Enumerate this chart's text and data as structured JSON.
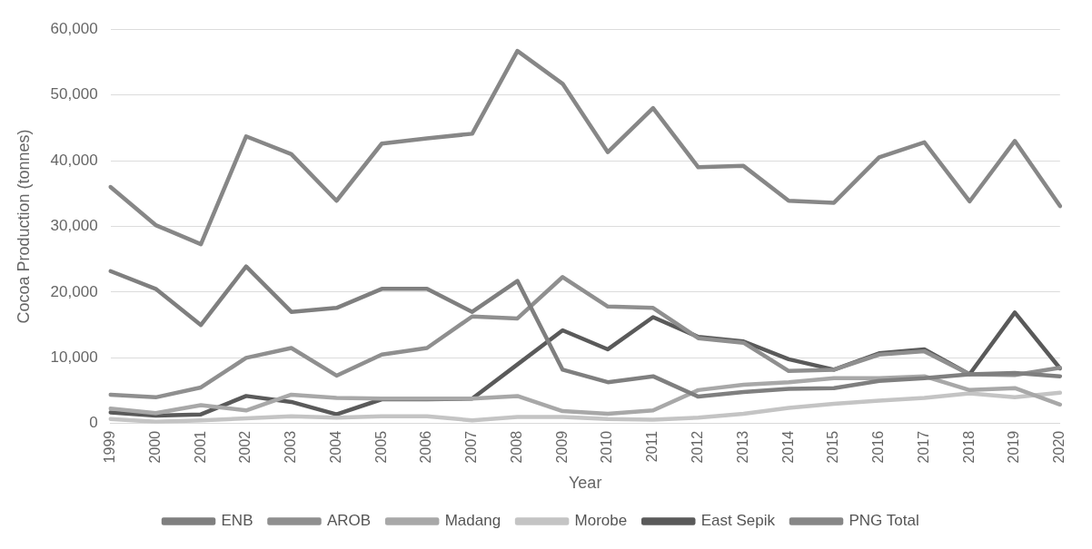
{
  "chart_data": {
    "type": "line",
    "xlabel": "Year",
    "ylabel": "Cocoa Production (tonnes)",
    "categories": [
      "1999",
      "2000",
      "2001",
      "2002",
      "2003",
      "2004",
      "2005",
      "2006",
      "2007",
      "2008",
      "2009",
      "2010",
      "2011",
      "2012",
      "2013",
      "2014",
      "2015",
      "2016",
      "2017",
      "2018",
      "2019",
      "2020"
    ],
    "series": [
      {
        "name": "ENB",
        "color": "#7f7f7f",
        "values": [
          23200,
          20500,
          15000,
          23900,
          17000,
          17600,
          20500,
          20500,
          17000,
          21700,
          8200,
          6300,
          7200,
          4100,
          4800,
          5300,
          5400,
          6500,
          6900,
          7500,
          7700,
          7200
        ]
      },
      {
        "name": "AROB",
        "color": "#8f8f8f",
        "values": [
          4400,
          4000,
          5500,
          10000,
          11500,
          7300,
          10500,
          11500,
          16300,
          16000,
          22300,
          17800,
          17600,
          13000,
          12300,
          8000,
          8200,
          10500,
          11000,
          7500,
          7400,
          8500
        ]
      },
      {
        "name": "Madang",
        "color": "#a8a8a8",
        "values": [
          2300,
          1600,
          2800,
          2000,
          4400,
          3900,
          3800,
          3800,
          3800,
          4200,
          1900,
          1500,
          2000,
          5100,
          5900,
          6300,
          6900,
          6900,
          7200,
          5100,
          5400,
          2900
        ]
      },
      {
        "name": "Morobe",
        "color": "#c4c4c4",
        "values": [
          700,
          300,
          500,
          800,
          1100,
          900,
          1100,
          1100,
          500,
          1000,
          1000,
          700,
          600,
          900,
          1500,
          2400,
          3000,
          3500,
          3900,
          4600,
          4000,
          4700
        ]
      },
      {
        "name": "East Sepik",
        "color": "#5a5a5a",
        "values": [
          1700,
          1200,
          1400,
          4200,
          3300,
          1400,
          3700,
          3700,
          3800,
          9000,
          14200,
          11300,
          16200,
          13200,
          12500,
          9800,
          8200,
          10700,
          11300,
          7500,
          16900,
          8400
        ]
      },
      {
        "name": "PNG Total",
        "color": "#878787",
        "values": [
          36000,
          30200,
          27300,
          43700,
          41000,
          33900,
          42600,
          43400,
          44100,
          56700,
          51700,
          41300,
          48000,
          39000,
          39200,
          33900,
          33600,
          40500,
          42800,
          33800,
          43000,
          33100
        ]
      }
    ],
    "ylim": [
      0,
      60000
    ],
    "yticks": [
      0,
      {
        "value": 10000,
        "label": "10,000"
      },
      {
        "value": 20000,
        "label": "20,000"
      },
      {
        "value": 30000,
        "label": "30,000"
      },
      {
        "value": 40000,
        "label": "40,000"
      },
      {
        "value": 50000,
        "label": "50,000"
      },
      {
        "value": 60000,
        "label": "60,000"
      }
    ],
    "grid": "y",
    "legend": "bottom",
    "marker": "none",
    "line_style": "solid"
  }
}
